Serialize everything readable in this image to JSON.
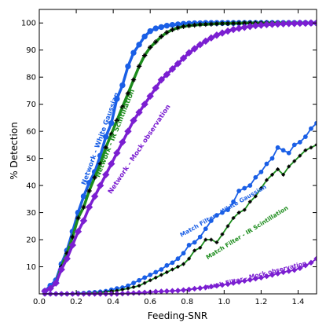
{
  "chart_data": {
    "type": "line",
    "title": "",
    "xlabel": "Feeding-SNR",
    "ylabel": "% Detection",
    "xlim": [
      0.0,
      1.5
    ],
    "ylim": [
      0,
      105
    ],
    "xticks": [
      0.0,
      0.2,
      0.4,
      0.6,
      0.8,
      1.0,
      1.2,
      1.4
    ],
    "xtick_labels": [
      "0.0",
      "0.2",
      "0.4",
      "0.6",
      "0.8",
      "1.0",
      "1.2",
      "1.4"
    ],
    "yticks": [
      10,
      20,
      30,
      40,
      50,
      60,
      70,
      80,
      90,
      100
    ],
    "ytick_labels": [
      "10",
      "20",
      "30",
      "40",
      "50",
      "60",
      "70",
      "80",
      "90",
      "100"
    ],
    "grid": false,
    "legend": "none",
    "series": [
      {
        "name": "Network - White Gaussian",
        "color": "#1a5fe6",
        "marker": "circle",
        "linewidth": 3.5,
        "label_anchor": [
          0.34,
          57
        ],
        "label_angle": -70,
        "x": [
          0.03,
          0.06,
          0.09,
          0.12,
          0.15,
          0.18,
          0.21,
          0.24,
          0.27,
          0.3,
          0.33,
          0.36,
          0.39,
          0.42,
          0.45,
          0.48,
          0.51,
          0.54,
          0.57,
          0.6,
          0.63,
          0.66,
          0.69,
          0.72,
          0.75,
          0.78,
          0.81,
          0.84,
          0.87,
          0.9,
          0.93,
          0.96,
          0.99,
          1.02,
          1.05,
          1.08,
          1.11,
          1.14,
          1.17,
          1.2,
          1.23,
          1.26,
          1.29,
          1.32,
          1.35,
          1.38,
          1.41,
          1.44,
          1.47,
          1.5
        ],
        "y": [
          1,
          3,
          5,
          11,
          16,
          23,
          30,
          36,
          41,
          45,
          51,
          58,
          63,
          72,
          77,
          84,
          89,
          92,
          95,
          97,
          98,
          98.5,
          99,
          99.3,
          99.5,
          99.7,
          99.8,
          99.9,
          99.9,
          100,
          100,
          100,
          100,
          100,
          100,
          100,
          100,
          100,
          100,
          100,
          100,
          100,
          100,
          100,
          100,
          100,
          100,
          100,
          100,
          100
        ]
      },
      {
        "name": "Network - IR Scintillation",
        "color": "#1c8c1c",
        "marker": "cross",
        "linewidth": 3.5,
        "label_anchor": [
          0.42,
          59
        ],
        "label_angle": -68,
        "x": [
          0.03,
          0.06,
          0.09,
          0.12,
          0.15,
          0.18,
          0.21,
          0.24,
          0.27,
          0.3,
          0.33,
          0.36,
          0.39,
          0.42,
          0.45,
          0.48,
          0.51,
          0.54,
          0.57,
          0.6,
          0.63,
          0.66,
          0.69,
          0.72,
          0.75,
          0.78,
          0.81,
          0.84,
          0.87,
          0.9,
          0.93,
          0.96,
          0.99,
          1.02,
          1.05,
          1.08,
          1.11,
          1.14,
          1.17,
          1.2,
          1.23,
          1.26,
          1.29,
          1.32,
          1.35,
          1.38,
          1.41,
          1.44,
          1.47,
          1.5
        ],
        "y": [
          1,
          2,
          4,
          10,
          15,
          21,
          28,
          32,
          38,
          43,
          48,
          54,
          59,
          64,
          69,
          74,
          79,
          84,
          88,
          91,
          93,
          95,
          96.5,
          97.5,
          98.2,
          98.7,
          99,
          99.2,
          99.4,
          99.5,
          99.6,
          99.7,
          99.8,
          99.8,
          99.9,
          99.9,
          100,
          100,
          100,
          100,
          100,
          100,
          100,
          100,
          100,
          100,
          100,
          100,
          100,
          100
        ]
      },
      {
        "name": "Network - Mock observation",
        "color": "#7b1fd1",
        "marker": "diamond",
        "linewidth": 3.5,
        "label_anchor": [
          0.55,
          53
        ],
        "label_angle": -56,
        "x": [
          0.03,
          0.06,
          0.09,
          0.12,
          0.15,
          0.18,
          0.21,
          0.24,
          0.27,
          0.3,
          0.33,
          0.36,
          0.39,
          0.42,
          0.45,
          0.48,
          0.51,
          0.54,
          0.57,
          0.6,
          0.63,
          0.66,
          0.69,
          0.72,
          0.75,
          0.78,
          0.81,
          0.84,
          0.87,
          0.9,
          0.93,
          0.96,
          0.99,
          1.02,
          1.05,
          1.08,
          1.11,
          1.14,
          1.17,
          1.2,
          1.23,
          1.26,
          1.29,
          1.32,
          1.35,
          1.38,
          1.41,
          1.44,
          1.47,
          1.5
        ],
        "y": [
          1,
          2,
          4,
          9,
          13,
          18,
          23,
          27,
          32,
          36,
          40,
          44,
          48,
          52,
          56,
          60,
          64,
          67,
          70,
          73,
          76,
          79,
          81,
          83,
          85,
          87,
          89,
          90.5,
          92,
          93.3,
          94.5,
          95.5,
          96.3,
          97,
          97.6,
          98,
          98.4,
          98.7,
          99,
          99.2,
          99.4,
          99.5,
          99.6,
          99.7,
          99.8,
          99.8,
          99.9,
          99.9,
          100,
          100
        ]
      },
      {
        "name": "Match Filter - White Gaussian",
        "color": "#1a5fe6",
        "marker": "circle",
        "linewidth": 1.8,
        "label_anchor": [
          1.0,
          30
        ],
        "label_angle": -30,
        "x": [
          0.03,
          0.06,
          0.09,
          0.12,
          0.15,
          0.18,
          0.21,
          0.24,
          0.27,
          0.3,
          0.33,
          0.36,
          0.39,
          0.42,
          0.45,
          0.48,
          0.51,
          0.54,
          0.57,
          0.6,
          0.63,
          0.66,
          0.69,
          0.72,
          0.75,
          0.78,
          0.81,
          0.84,
          0.87,
          0.9,
          0.93,
          0.96,
          0.99,
          1.02,
          1.05,
          1.08,
          1.11,
          1.14,
          1.17,
          1.2,
          1.23,
          1.26,
          1.29,
          1.32,
          1.35,
          1.38,
          1.41,
          1.44,
          1.47,
          1.5
        ],
        "y": [
          0,
          0,
          0,
          0,
          0,
          0,
          0.2,
          0.3,
          0.5,
          0.6,
          0.8,
          1,
          1.5,
          2,
          2.3,
          3,
          4,
          5,
          6,
          7,
          8,
          9,
          10.5,
          11.5,
          13,
          15,
          18,
          19,
          21,
          24,
          27,
          29,
          30,
          31,
          34,
          38,
          39,
          40,
          43,
          45,
          48,
          50,
          54,
          53,
          52,
          55,
          56,
          58,
          61,
          63
        ]
      },
      {
        "name": "Match Filter - IR Scintillation",
        "color": "#1c8c1c",
        "marker": "cross",
        "linewidth": 1.8,
        "label_anchor": [
          1.13,
          22
        ],
        "label_angle": -32,
        "x": [
          0.03,
          0.06,
          0.09,
          0.12,
          0.15,
          0.18,
          0.21,
          0.24,
          0.27,
          0.3,
          0.33,
          0.36,
          0.39,
          0.42,
          0.45,
          0.48,
          0.51,
          0.54,
          0.57,
          0.6,
          0.63,
          0.66,
          0.69,
          0.72,
          0.75,
          0.78,
          0.81,
          0.84,
          0.87,
          0.9,
          0.93,
          0.96,
          0.99,
          1.02,
          1.05,
          1.08,
          1.11,
          1.14,
          1.17,
          1.2,
          1.23,
          1.26,
          1.29,
          1.32,
          1.35,
          1.38,
          1.41,
          1.44,
          1.47,
          1.5
        ],
        "y": [
          0,
          0,
          0,
          0,
          0,
          0,
          0,
          0.2,
          0.3,
          0.4,
          0.5,
          0.7,
          1,
          1.2,
          1.6,
          2,
          2.5,
          3,
          4,
          5,
          6,
          7,
          8,
          9,
          10,
          11,
          13,
          16,
          17,
          20,
          20,
          19,
          22,
          25,
          28,
          30,
          31,
          34,
          36,
          39,
          42,
          44,
          46,
          44,
          47,
          49,
          51,
          53,
          54,
          55
        ]
      },
      {
        "name": "Match Filter - Mock observation",
        "color": "#7b1fd1",
        "marker": "diamond",
        "linewidth": 1.8,
        "label_anchor": [
          1.17,
          6
        ],
        "label_angle": -14,
        "x": [
          0.03,
          0.06,
          0.09,
          0.12,
          0.15,
          0.18,
          0.21,
          0.24,
          0.27,
          0.3,
          0.33,
          0.36,
          0.39,
          0.42,
          0.45,
          0.48,
          0.51,
          0.54,
          0.57,
          0.6,
          0.63,
          0.66,
          0.69,
          0.72,
          0.75,
          0.78,
          0.81,
          0.84,
          0.87,
          0.9,
          0.93,
          0.96,
          0.99,
          1.02,
          1.05,
          1.08,
          1.11,
          1.14,
          1.17,
          1.2,
          1.23,
          1.26,
          1.29,
          1.32,
          1.35,
          1.38,
          1.41,
          1.44,
          1.47,
          1.5
        ],
        "y": [
          0,
          0,
          0,
          0,
          0,
          0,
          0,
          0,
          0,
          0,
          0,
          0,
          0,
          0,
          0.1,
          0.2,
          0.3,
          0.4,
          0.5,
          0.6,
          0.8,
          0.9,
          1,
          1.1,
          1.2,
          1.4,
          1.6,
          1.9,
          2.1,
          2.4,
          2.7,
          3,
          3.3,
          3.6,
          4,
          4.4,
          4.8,
          5.2,
          5.6,
          6,
          6.5,
          7,
          7.5,
          8,
          8.4,
          8.8,
          9.5,
          10.5,
          11.5,
          13
        ]
      }
    ]
  }
}
